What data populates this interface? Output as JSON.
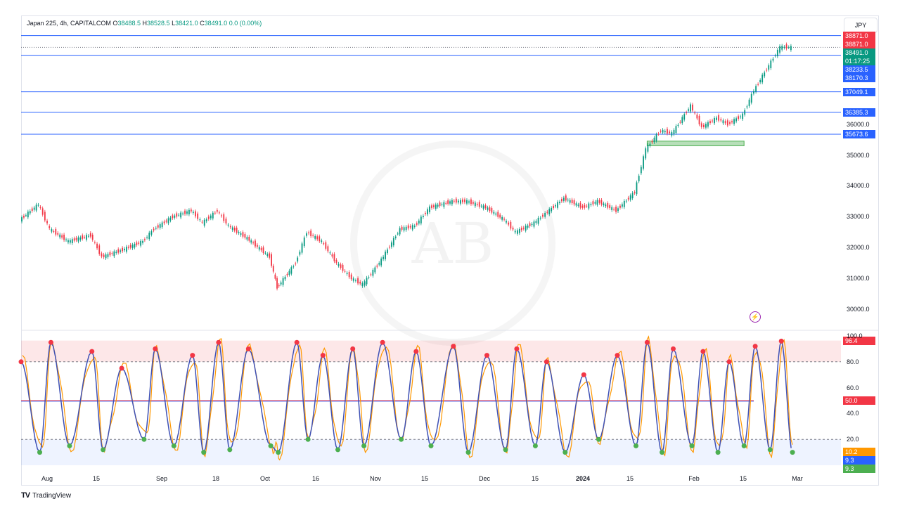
{
  "header": {
    "symbol": "Japan 225, 4h, CAPITALCOM",
    "open_label": "O",
    "open": "38488.5",
    "high_label": "H",
    "high": "38528.5",
    "low_label": "L",
    "low": "38421.0",
    "close_label": "C",
    "close": "38491.0",
    "change": "0.0 (0.00%)",
    "currency": "JPY"
  },
  "price_tags": [
    {
      "label": "38871.0",
      "value": 38871.0,
      "color": "#f23645"
    },
    {
      "label": "38871.0",
      "value": 38871.0,
      "color": "#f23645"
    },
    {
      "label": "38491.0",
      "value": 38491.0,
      "color": "#089981"
    },
    {
      "label": "01:17:25",
      "value": 38491.0,
      "color": "#089981"
    },
    {
      "label": "38233.5",
      "value": 38233.5,
      "color": "#2962ff"
    },
    {
      "label": "38170.3",
      "value": 38170.3,
      "color": "#2962ff"
    },
    {
      "label": "37049.1",
      "value": 37049.1,
      "color": "#2962ff"
    },
    {
      "label": "36385.3",
      "value": 36385.3,
      "color": "#2962ff"
    },
    {
      "label": "35673.6",
      "value": 35673.6,
      "color": "#2962ff"
    }
  ],
  "price_axis_labels": [
    "36000.0",
    "35000.0",
    "34000.0",
    "33000.0",
    "32000.0",
    "31000.0",
    "30000.0"
  ],
  "osc_tags": [
    {
      "label": "96.4",
      "value": 96.4,
      "color": "#f23645"
    },
    {
      "label": "50.0",
      "value": 50.0,
      "color": "#f23645"
    },
    {
      "label": "10.2",
      "value": 10.2,
      "color": "#ff9800"
    },
    {
      "label": "9.3",
      "value": 9.3,
      "color": "#2962ff"
    },
    {
      "label": "9.3",
      "value": 9.3,
      "color": "#4caf50"
    }
  ],
  "osc_axis_labels": [
    "100.0",
    "80.0",
    "60.0",
    "40.0",
    "20.0"
  ],
  "time_labels": [
    {
      "label": "Aug",
      "bold": false
    },
    {
      "label": "15",
      "bold": false
    },
    {
      "label": "Sep",
      "bold": false
    },
    {
      "label": "18",
      "bold": false
    },
    {
      "label": "Oct",
      "bold": false
    },
    {
      "label": "16",
      "bold": false
    },
    {
      "label": "Nov",
      "bold": false
    },
    {
      "label": "15",
      "bold": false
    },
    {
      "label": "Dec",
      "bold": false
    },
    {
      "label": "15",
      "bold": false
    },
    {
      "label": "2024",
      "bold": true
    },
    {
      "label": "15",
      "bold": false
    },
    {
      "label": "Feb",
      "bold": false
    },
    {
      "label": "15",
      "bold": false
    },
    {
      "label": "Mar",
      "bold": false
    }
  ],
  "brand": "TradingView",
  "watermark_text": "AB",
  "chart_data": [
    {
      "type": "candlestick",
      "title": "Japan 225, 4h, CAPITALCOM",
      "ylim": [
        29500,
        39000
      ],
      "horizontal_levels": [
        38871.0,
        38233.5,
        37049.1,
        36385.3,
        35673.6
      ],
      "dotted_level": 38491.0,
      "support_zone": [
        35300,
        35450
      ],
      "series": [
        {
          "name": "Japan 225",
          "values": [
            [
              "2023-07-27",
              32900
            ],
            [
              "2023-08-01",
              33400
            ],
            [
              "2023-08-04",
              32600
            ],
            [
              "2023-08-09",
              32200
            ],
            [
              "2023-08-15",
              32400
            ],
            [
              "2023-08-18",
              31700
            ],
            [
              "2023-08-23",
              31900
            ],
            [
              "2023-08-29",
              32200
            ],
            [
              "2023-09-01",
              32600
            ],
            [
              "2023-09-06",
              33000
            ],
            [
              "2023-09-11",
              33200
            ],
            [
              "2023-09-14",
              32800
            ],
            [
              "2023-09-18",
              33200
            ],
            [
              "2023-09-21",
              32700
            ],
            [
              "2023-09-26",
              32300
            ],
            [
              "2023-10-02",
              31700
            ],
            [
              "2023-10-04",
              30700
            ],
            [
              "2023-10-09",
              31500
            ],
            [
              "2023-10-12",
              32500
            ],
            [
              "2023-10-16",
              32200
            ],
            [
              "2023-10-20",
              31500
            ],
            [
              "2023-10-24",
              31000
            ],
            [
              "2023-10-27",
              30800
            ],
            [
              "2023-11-01",
              31600
            ],
            [
              "2023-11-06",
              32600
            ],
            [
              "2023-11-10",
              32700
            ],
            [
              "2023-11-14",
              33300
            ],
            [
              "2023-11-20",
              33500
            ],
            [
              "2023-11-24",
              33500
            ],
            [
              "2023-11-29",
              33300
            ],
            [
              "2023-12-04",
              32900
            ],
            [
              "2023-12-07",
              32500
            ],
            [
              "2023-12-12",
              32800
            ],
            [
              "2023-12-15",
              33100
            ],
            [
              "2023-12-20",
              33600
            ],
            [
              "2023-12-25",
              33300
            ],
            [
              "2023-12-29",
              33500
            ],
            [
              "2024-01-03",
              33200
            ],
            [
              "2024-01-08",
              33800
            ],
            [
              "2024-01-11",
              35200
            ],
            [
              "2024-01-15",
              35800
            ],
            [
              "2024-01-18",
              35700
            ],
            [
              "2024-01-23",
              36600
            ],
            [
              "2024-01-26",
              35900
            ],
            [
              "2024-01-30",
              36200
            ],
            [
              "2024-02-02",
              36000
            ],
            [
              "2024-02-06",
              36300
            ],
            [
              "2024-02-09",
              37100
            ],
            [
              "2024-02-13",
              37900
            ],
            [
              "2024-02-16",
              38500
            ],
            [
              "2024-02-19",
              38491
            ]
          ]
        }
      ]
    },
    {
      "type": "line",
      "title": "",
      "ylim": [
        0,
        100
      ],
      "levels": [
        96.4,
        50.0,
        20.0
      ],
      "series": [
        {
          "values": [
            [
              "2023-07-27",
              80
            ],
            [
              "2023-08-01",
              10
            ],
            [
              "2023-08-04",
              95
            ],
            [
              "2023-08-09",
              15
            ],
            [
              "2023-08-15",
              88
            ],
            [
              "2023-08-18",
              12
            ],
            [
              "2023-08-23",
              75
            ],
            [
              "2023-08-29",
              20
            ],
            [
              "2023-09-01",
              90
            ],
            [
              "2023-09-06",
              15
            ],
            [
              "2023-09-11",
              85
            ],
            [
              "2023-09-14",
              10
            ],
            [
              "2023-09-18",
              95
            ],
            [
              "2023-09-21",
              12
            ],
            [
              "2023-09-26",
              90
            ],
            [
              "2023-10-02",
              15
            ],
            [
              "2023-10-04",
              10
            ],
            [
              "2023-10-09",
              95
            ],
            [
              "2023-10-12",
              20
            ],
            [
              "2023-10-16",
              85
            ],
            [
              "2023-10-20",
              12
            ],
            [
              "2023-10-24",
              90
            ],
            [
              "2023-10-27",
              15
            ],
            [
              "2023-11-01",
              95
            ],
            [
              "2023-11-06",
              20
            ],
            [
              "2023-11-10",
              88
            ],
            [
              "2023-11-14",
              15
            ],
            [
              "2023-11-20",
              92
            ],
            [
              "2023-11-24",
              10
            ],
            [
              "2023-11-29",
              85
            ],
            [
              "2023-12-04",
              12
            ],
            [
              "2023-12-07",
              90
            ],
            [
              "2023-12-12",
              15
            ],
            [
              "2023-12-15",
              80
            ],
            [
              "2023-12-20",
              10
            ],
            [
              "2023-12-25",
              70
            ],
            [
              "2023-12-29",
              20
            ],
            [
              "2024-01-03",
              85
            ],
            [
              "2024-01-08",
              15
            ],
            [
              "2024-01-11",
              95
            ],
            [
              "2024-01-15",
              10
            ],
            [
              "2024-01-18",
              90
            ],
            [
              "2024-01-23",
              15
            ],
            [
              "2024-01-26",
              88
            ],
            [
              "2024-01-30",
              10
            ],
            [
              "2024-02-02",
              80
            ],
            [
              "2024-02-06",
              15
            ],
            [
              "2024-02-09",
              92
            ],
            [
              "2024-02-13",
              12
            ],
            [
              "2024-02-16",
              96
            ],
            [
              "2024-02-19",
              10
            ]
          ]
        }
      ]
    }
  ]
}
